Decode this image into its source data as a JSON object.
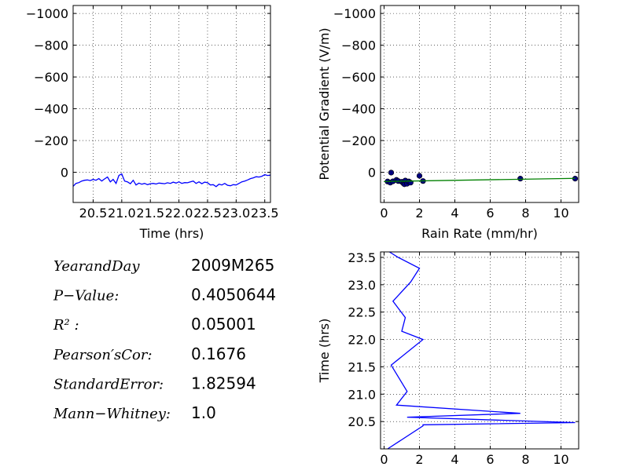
{
  "stats": {
    "rows": [
      {
        "label": "YearandDay",
        "value": "2009M265"
      },
      {
        "label": "P−Value:",
        "value": "0.4050644"
      },
      {
        "label": "R² :",
        "value": "0.05001"
      },
      {
        "label": "Pearson′sCor:",
        "value": "0.1676"
      },
      {
        "label": "StandardError:",
        "value": "1.82594"
      },
      {
        "label": "Mann−Whitney:",
        "value": "1.0"
      }
    ]
  },
  "chart_data": [
    {
      "id": "timeseries",
      "type": "line",
      "xlabel": "Time (hrs)",
      "ylabel": "",
      "xlim": [
        20.15,
        23.6
      ],
      "ylim": [
        -1050,
        190
      ],
      "y_inverted": true,
      "grid": true,
      "xticks": [
        20.5,
        21.0,
        21.5,
        22.0,
        22.5,
        23.0,
        23.5
      ],
      "xtick_labels": [
        "20.5",
        "21.0",
        "21.5",
        "22.0",
        "22.5",
        "23.0",
        "23.5"
      ],
      "yticks": [
        -1000,
        -800,
        -600,
        -400,
        -200,
        0
      ],
      "ytick_labels": [
        "−1000",
        "−800",
        "−600",
        "−400",
        "−200",
        "0"
      ],
      "series": [
        {
          "color": "#0000ff",
          "x": [
            20.15,
            20.2,
            20.25,
            20.3,
            20.35,
            20.4,
            20.45,
            20.5,
            20.55,
            20.6,
            20.65,
            20.7,
            20.75,
            20.8,
            20.85,
            20.9,
            20.95,
            21.0,
            21.05,
            21.1,
            21.15,
            21.2,
            21.25,
            21.3,
            21.35,
            21.4,
            21.45,
            21.5,
            21.55,
            21.6,
            21.65,
            21.7,
            21.75,
            21.8,
            21.85,
            21.9,
            21.95,
            22.0,
            22.05,
            22.1,
            22.15,
            22.2,
            22.25,
            22.3,
            22.35,
            22.4,
            22.45,
            22.5,
            22.55,
            22.6,
            22.65,
            22.7,
            22.75,
            22.8,
            22.85,
            22.9,
            22.95,
            23.0,
            23.05,
            23.1,
            23.15,
            23.2,
            23.25,
            23.3,
            23.35,
            23.4,
            23.45,
            23.5,
            23.55,
            23.6
          ],
          "y": [
            88,
            70,
            65,
            55,
            50,
            48,
            52,
            45,
            50,
            40,
            55,
            42,
            30,
            60,
            45,
            70,
            20,
            10,
            55,
            60,
            72,
            50,
            80,
            68,
            75,
            70,
            78,
            72,
            70,
            74,
            68,
            70,
            72,
            66,
            70,
            62,
            68,
            60,
            70,
            65,
            66,
            60,
            55,
            70,
            60,
            72,
            62,
            66,
            80,
            78,
            90,
            75,
            80,
            70,
            82,
            85,
            78,
            80,
            70,
            60,
            55,
            48,
            40,
            35,
            28,
            30,
            25,
            15,
            20,
            18
          ]
        }
      ]
    },
    {
      "id": "scatter",
      "type": "scatter",
      "xlabel": "Rain Rate (mm/hr)",
      "ylabel": "Potential Gradient (V/m)",
      "xlim": [
        -0.2,
        11
      ],
      "ylim": [
        -1050,
        190
      ],
      "y_inverted": true,
      "grid": true,
      "xticks": [
        0,
        2,
        4,
        6,
        8,
        10
      ],
      "xtick_labels": [
        "0",
        "2",
        "4",
        "6",
        "8",
        "10"
      ],
      "yticks": [
        -1000,
        -800,
        -600,
        -400,
        -200,
        0
      ],
      "ytick_labels": [
        "−1000",
        "−800",
        "−600",
        "−400",
        "−200",
        "0"
      ],
      "points": {
        "color": "#000080",
        "x": [
          0.2,
          0.35,
          0.4,
          0.5,
          0.7,
          0.8,
          1.0,
          1.1,
          1.15,
          1.2,
          1.3,
          1.4,
          1.5,
          2.0,
          2.2,
          7.7,
          10.8
        ],
        "y": [
          58,
          65,
          2,
          57,
          48,
          55,
          60,
          70,
          75,
          52,
          72,
          58,
          65,
          22,
          55,
          40,
          40
        ]
      },
      "fit": {
        "color": "#008000",
        "x": [
          0,
          10.8
        ],
        "y": [
          58,
          38
        ]
      }
    },
    {
      "id": "rain_vs_time",
      "type": "line",
      "xlabel": "",
      "ylabel": "Time (hrs)",
      "xlim": [
        -0.2,
        11
      ],
      "ylim": [
        20.0,
        23.6
      ],
      "grid": true,
      "xticks": [
        0,
        2,
        4,
        6,
        8,
        10
      ],
      "xtick_labels": [
        "0",
        "2",
        "4",
        "6",
        "8",
        "10"
      ],
      "yticks": [
        20.5,
        21.0,
        21.5,
        22.0,
        22.5,
        23.0,
        23.5
      ],
      "ytick_labels": [
        "20.5",
        "21.0",
        "21.5",
        "22.0",
        "22.5",
        "23.0",
        "23.5"
      ],
      "series": [
        {
          "color": "#0000ff",
          "x": [
            0.2,
            2.2,
            2.2,
            10.8,
            1.3,
            7.7,
            0.7,
            1.3,
            0.4,
            2.2,
            1.0,
            1.2,
            0.5,
            1.5,
            2.0,
            0.8,
            0.3
          ],
          "y": [
            20.0,
            20.42,
            20.44,
            20.48,
            20.58,
            20.65,
            20.8,
            21.05,
            21.53,
            22.0,
            22.15,
            22.4,
            22.7,
            23.05,
            23.3,
            23.5,
            23.6
          ]
        }
      ]
    }
  ]
}
